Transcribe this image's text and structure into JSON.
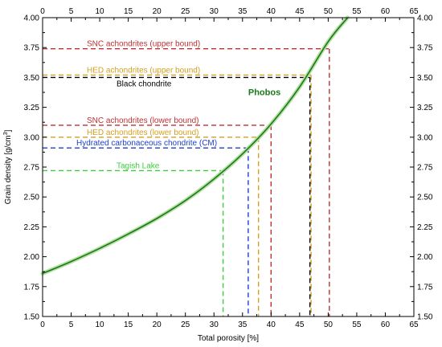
{
  "chart_data": {
    "type": "line",
    "xlabel": "Total porosity [%]",
    "ylabel": "Grain density [g/cm",
    "ylabel_sup": "3",
    "ylabel_end": "]",
    "xlim": [
      0,
      65
    ],
    "ylim": [
      1.5,
      4.0
    ],
    "x_ticks": [
      0,
      5,
      10,
      15,
      20,
      25,
      30,
      35,
      40,
      45,
      50,
      55,
      60,
      65
    ],
    "y_ticks": [
      1.5,
      1.75,
      2.0,
      2.25,
      2.5,
      2.75,
      3.0,
      3.25,
      3.5,
      3.75,
      4.0
    ],
    "y_tick_labels": [
      "1.50",
      "1.75",
      "2.00",
      "2.25",
      "2.50",
      "2.75",
      "3.00",
      "3.25",
      "3.50",
      "3.75",
      "4.00"
    ],
    "grid": false,
    "series": [
      {
        "name": "Phobos",
        "color": "#1a7a1a",
        "x": [
          0,
          5,
          10,
          15,
          20,
          25,
          30,
          35,
          40,
          45,
          50,
          53.4
        ],
        "y": [
          1.86,
          1.96,
          2.07,
          2.19,
          2.32,
          2.47,
          2.65,
          2.86,
          3.11,
          3.42,
          3.8,
          4.0
        ]
      }
    ],
    "reference_lines": [
      {
        "label": "SNC achondrites (upper bound)",
        "color": "#c03030",
        "density": 3.74,
        "porosity": 50.2
      },
      {
        "label": "HED achondrites (upper bound)",
        "color": "#d4a020",
        "density": 3.52,
        "porosity": 47.0
      },
      {
        "label": "Black chondrite",
        "color": "#000000",
        "density": 3.5,
        "porosity": 46.8
      },
      {
        "label": "SNC achondrites (lower bound)",
        "color": "#c03030",
        "density": 3.1,
        "porosity": 40.0
      },
      {
        "label": "HED achondrites (lower bound)",
        "color": "#d4a020",
        "density": 3.0,
        "porosity": 37.8
      },
      {
        "label": "Hydrated carbonaceous chondrite (CM)",
        "color": "#1f3fd0",
        "density": 2.91,
        "porosity": 36.0
      },
      {
        "label": "Tagish Lake",
        "color": "#3fcc3f",
        "density": 2.72,
        "porosity": 31.6
      }
    ]
  }
}
